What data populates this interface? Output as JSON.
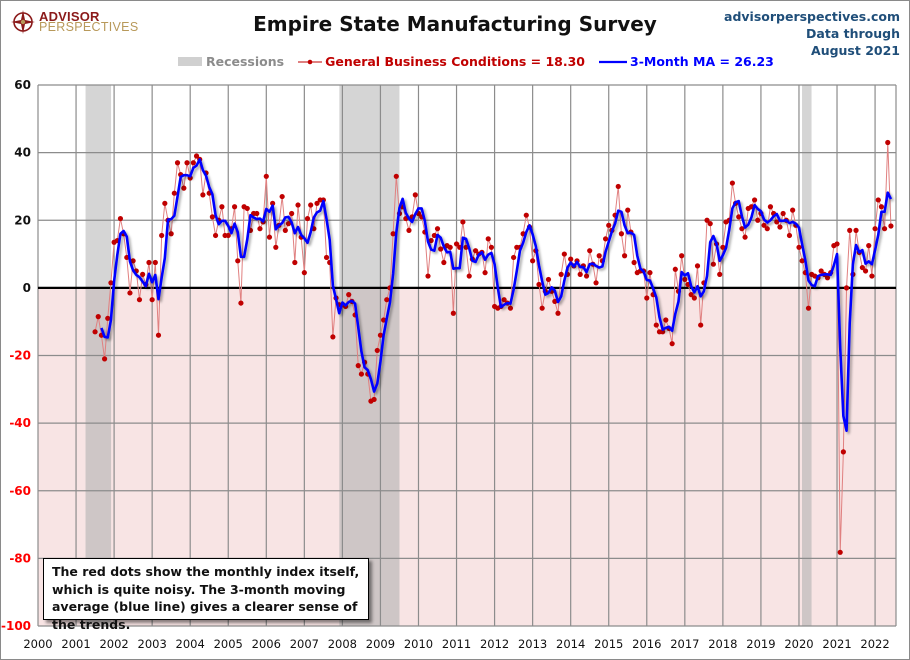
{
  "header": {
    "logo_top": "ADVISOR",
    "logo_bottom": "PERSPECTIVES",
    "title": "Empire State Manufacturing Survey",
    "source_line1": "advisorperspectives.com",
    "source_line2": "Data through",
    "source_line3": "August 2021"
  },
  "legend": {
    "recessions": "Recessions",
    "gbc": "General Business Conditions = 18.30",
    "ma": "3-Month MA = 26.23"
  },
  "note": "The red dots show the monthly  index itself, which is quite noisy. The 3-month moving average (blue line) gives a clearer sense of the trends.",
  "colors": {
    "gbc": "#c00000",
    "gbc_line": "#e08080",
    "ma": "#0000ff",
    "recession": "#d0d0d0",
    "negative_bg": "#f8e4e4",
    "grid": "#8c8c8c",
    "neg_tick": "#ff0000"
  },
  "chart_data": {
    "type": "line",
    "title": "Empire State Manufacturing Survey",
    "xlabel": "",
    "ylabel": "",
    "xlim": [
      2000,
      2022.55
    ],
    "ylim": [
      -100,
      60
    ],
    "grid": true,
    "legend_position": "top",
    "x_ticks": [
      "2000",
      "2001",
      "2002",
      "2003",
      "2004",
      "2005",
      "2006",
      "2007",
      "2008",
      "2009",
      "2010",
      "2011",
      "2012",
      "2013",
      "2014",
      "2015",
      "2016",
      "2017",
      "2018",
      "2019",
      "2020",
      "2021",
      "2022"
    ],
    "y_ticks": [
      60,
      40,
      20,
      0,
      -20,
      -40,
      -60,
      -80,
      -100
    ],
    "recessions": [
      [
        2001.25,
        2001.92
      ],
      [
        2007.92,
        2009.5
      ],
      [
        2020.08,
        2020.33
      ]
    ],
    "start": "2001-07",
    "frequency": "monthly",
    "series": [
      {
        "name": "General Business Conditions",
        "values": [
          -13,
          -8.5,
          -14,
          -21,
          -9,
          1.5,
          13.5,
          14,
          20.5,
          16,
          9,
          -1.5,
          8,
          5,
          -3.5,
          4,
          1,
          7.5,
          -3.5,
          7.5,
          -14,
          15.5,
          25,
          20,
          16,
          28,
          37,
          33.5,
          29.5,
          37,
          32.5,
          37,
          39,
          38,
          27.5,
          34,
          28,
          21,
          15.5,
          20,
          24,
          15.5,
          15.5,
          17.5,
          24,
          8,
          -4.5,
          24,
          23.5,
          17,
          22,
          22,
          17.5,
          19.5,
          33,
          15,
          25,
          12,
          18.5,
          27,
          17,
          19,
          22,
          7.5,
          24.5,
          15,
          4.5,
          20.5,
          24.5,
          17.5,
          25,
          26,
          26,
          9,
          7.5,
          -14.5,
          -3,
          -5,
          -5,
          -5.5,
          -2,
          -4,
          -8,
          -23,
          -25.5,
          -22,
          -25.5,
          -33.5,
          -33,
          -18.5,
          -14,
          -9.5,
          -3.5,
          0,
          16,
          33,
          22,
          24,
          20.5,
          17,
          21,
          27.5,
          22,
          21,
          16.5,
          3.5,
          14,
          15.5,
          17.5,
          11.5,
          7.5,
          12.5,
          12,
          -7.5,
          13,
          12,
          19.5,
          12,
          3.5,
          8.5,
          11,
          10,
          10.5,
          4.5,
          14.5,
          12,
          -5.5,
          -6,
          -5.5,
          -3.5,
          -4.5,
          -6,
          9,
          12,
          12,
          16,
          21.5,
          18,
          8,
          11,
          1,
          -6,
          -1,
          2.5,
          -1,
          -4,
          -7.5,
          4,
          10,
          4,
          8.5,
          6.5,
          8,
          4,
          6.5,
          3.5,
          11,
          7,
          1.5,
          9.5,
          8,
          14.5,
          18.5,
          17,
          21.5,
          30,
          16,
          9.5,
          23,
          16.5,
          7.5,
          4.5,
          5,
          5,
          -3,
          4.5,
          -2,
          -11,
          -13,
          -13,
          -9.5,
          -12,
          -16.5,
          5.5,
          -1,
          9.5,
          2.5,
          1,
          -2,
          -3,
          6.5,
          -11,
          1.5,
          20,
          19,
          7,
          13,
          4,
          12,
          19.5,
          20,
          31,
          25,
          21,
          17.5,
          15,
          23.5,
          24,
          26,
          20,
          22,
          18.5,
          17.5,
          24,
          22,
          19.5,
          18,
          22,
          20,
          15.5,
          23,
          18.5,
          12,
          8,
          4.5,
          -6,
          4,
          3.5,
          3,
          5,
          4,
          3,
          4.5,
          12.5,
          13,
          -78.2,
          -48.5,
          0,
          17,
          4,
          17,
          10.5,
          6,
          5,
          12.5,
          3.5,
          17.5,
          26,
          24,
          17.5,
          43,
          18.3
        ]
      },
      {
        "name": "3-Month MA",
        "values": "computed as trailing 3-month average of General Business Conditions"
      }
    ]
  }
}
